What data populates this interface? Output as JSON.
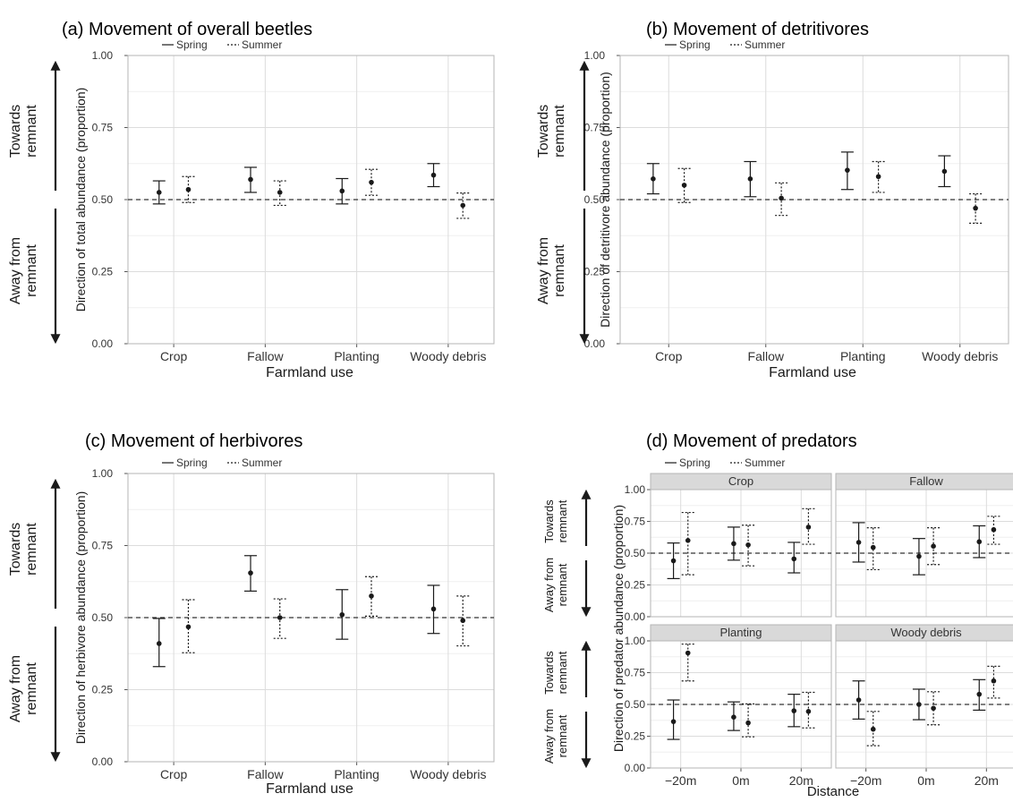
{
  "legend": {
    "spring": "Spring",
    "summer": "Summer"
  },
  "arrows": {
    "toward": [
      "Towards",
      "remnant"
    ],
    "away": [
      "Away from",
      "remnant"
    ]
  },
  "colors": {
    "line": "#1a1a1a",
    "grid_major": "#dcdcdc",
    "grid_minor": "#efefef",
    "strip": "#d9d9d9"
  },
  "chart_data": [
    {
      "type": "scatter",
      "title": "(a) Movement of overall beetles",
      "xlabel": "Farmland use",
      "ylabel": "Direction of total abundance (proportion)",
      "categories": [
        "Crop",
        "Fallow",
        "Planting",
        "Woody debris"
      ],
      "ylim": [
        0,
        1
      ],
      "yticks": [
        "0.00",
        "0.25",
        "0.50",
        "0.75",
        "1.00"
      ],
      "reference_line": 0.5,
      "series": [
        {
          "name": "Spring",
          "values": [
            0.525,
            0.57,
            0.53,
            0.585
          ],
          "lower": [
            0.485,
            0.525,
            0.485,
            0.545
          ],
          "upper": [
            0.565,
            0.612,
            0.573,
            0.625
          ]
        },
        {
          "name": "Summer",
          "values": [
            0.535,
            0.525,
            0.56,
            0.48
          ],
          "lower": [
            0.49,
            0.48,
            0.515,
            0.435
          ],
          "upper": [
            0.58,
            0.565,
            0.605,
            0.523
          ]
        }
      ]
    },
    {
      "type": "scatter",
      "title": "(b) Movement of detritivores",
      "xlabel": "Farmland use",
      "ylabel": "Direction of detritivore abundance (proportion)",
      "categories": [
        "Crop",
        "Fallow",
        "Planting",
        "Woody debris"
      ],
      "ylim": [
        0,
        1
      ],
      "yticks": [
        "0.00",
        "0.25",
        "0.50",
        "0.75",
        "1.00"
      ],
      "reference_line": 0.5,
      "series": [
        {
          "name": "Spring",
          "values": [
            0.572,
            0.572,
            0.602,
            0.598
          ],
          "lower": [
            0.52,
            0.51,
            0.535,
            0.545
          ],
          "upper": [
            0.625,
            0.632,
            0.665,
            0.652
          ]
        },
        {
          "name": "Summer",
          "values": [
            0.55,
            0.505,
            0.58,
            0.47
          ],
          "lower": [
            0.49,
            0.445,
            0.525,
            0.418
          ],
          "upper": [
            0.608,
            0.558,
            0.632,
            0.52
          ]
        }
      ]
    },
    {
      "type": "scatter",
      "title": "(c) Movement of  herbivores",
      "xlabel": "Farmland use",
      "ylabel": "Direction of herbivore abundance (proportion)",
      "categories": [
        "Crop",
        "Fallow",
        "Planting",
        "Woody debris"
      ],
      "ylim": [
        0,
        1
      ],
      "yticks": [
        "0.00",
        "0.25",
        "0.50",
        "0.75",
        "1.00"
      ],
      "reference_line": 0.5,
      "series": [
        {
          "name": "Spring",
          "values": [
            0.41,
            0.655,
            0.51,
            0.53
          ],
          "lower": [
            0.33,
            0.592,
            0.425,
            0.445
          ],
          "upper": [
            0.497,
            0.715,
            0.597,
            0.612
          ]
        },
        {
          "name": "Summer",
          "values": [
            0.468,
            0.5,
            0.575,
            0.49
          ],
          "lower": [
            0.378,
            0.428,
            0.505,
            0.402
          ],
          "upper": [
            0.562,
            0.565,
            0.642,
            0.575
          ]
        }
      ]
    },
    {
      "type": "scatter",
      "title": "(d) Movement of predators",
      "xlabel": "Distance",
      "ylabel": "Direction of predator abundance (proportion)",
      "categories": [
        "-20m",
        "0m",
        "20m"
      ],
      "ylim": [
        0,
        1
      ],
      "yticks": [
        "0.00",
        "0.25",
        "0.50",
        "0.75",
        "1.00"
      ],
      "reference_line": 0.5,
      "facets": [
        {
          "label": "Crop",
          "series": [
            {
              "name": "Spring",
              "values": [
                0.44,
                0.575,
                0.455
              ],
              "lower": [
                0.3,
                0.445,
                0.345
              ],
              "upper": [
                0.58,
                0.705,
                0.585
              ]
            },
            {
              "name": "Summer",
              "values": [
                0.6,
                0.565,
                0.705
              ],
              "lower": [
                0.33,
                0.4,
                0.57
              ],
              "upper": [
                0.82,
                0.72,
                0.85
              ]
            }
          ]
        },
        {
          "label": "Fallow",
          "series": [
            {
              "name": "Spring",
              "values": [
                0.585,
                0.475,
                0.59
              ],
              "lower": [
                0.43,
                0.33,
                0.465
              ],
              "upper": [
                0.74,
                0.615,
                0.715
              ]
            },
            {
              "name": "Summer",
              "values": [
                0.545,
                0.555,
                0.685
              ],
              "lower": [
                0.37,
                0.41,
                0.57
              ],
              "upper": [
                0.7,
                0.7,
                0.79
              ]
            }
          ]
        },
        {
          "label": "Planting",
          "series": [
            {
              "name": "Spring",
              "values": [
                0.365,
                0.4,
                0.45
              ],
              "lower": [
                0.225,
                0.295,
                0.325
              ],
              "upper": [
                0.535,
                0.52,
                0.58
              ]
            },
            {
              "name": "Summer",
              "values": [
                0.905,
                0.355,
                0.445
              ],
              "lower": [
                0.685,
                0.245,
                0.315
              ],
              "upper": [
                0.975,
                0.505,
                0.595
              ]
            }
          ]
        },
        {
          "label": "Woody debris",
          "series": [
            {
              "name": "Spring",
              "values": [
                0.535,
                0.5,
                0.58
              ],
              "lower": [
                0.385,
                0.38,
                0.455
              ],
              "upper": [
                0.685,
                0.62,
                0.695
              ]
            },
            {
              "name": "Summer",
              "values": [
                0.305,
                0.47,
                0.685
              ],
              "lower": [
                0.175,
                0.34,
                0.55
              ],
              "upper": [
                0.445,
                0.6,
                0.8
              ]
            }
          ]
        }
      ]
    }
  ]
}
